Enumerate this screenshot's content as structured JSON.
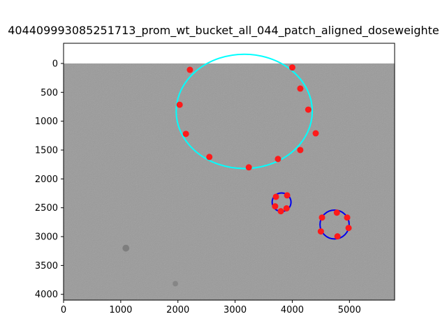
{
  "chart_data": {
    "type": "scatter",
    "title": "404409993085251713_prom_wt_bucket_all_044_patch_aligned_doseweighte",
    "xlabel": "",
    "ylabel": "",
    "xlim": [
      0,
      5790
    ],
    "ylim": [
      -350,
      4100
    ],
    "y_inverted": true,
    "grid": false,
    "legend": "none",
    "x_ticks": [
      0,
      1000,
      2000,
      3000,
      4000,
      5000
    ],
    "y_ticks": [
      0,
      500,
      1000,
      1500,
      2000,
      2500,
      3000,
      3500,
      4000
    ],
    "background_image": {
      "x0": 0,
      "y0": 0,
      "x1": 5790,
      "y1": 4100,
      "color": "#9a9a9a",
      "description": "grayscale micrograph"
    },
    "gray_blobs": [
      {
        "x": 1090,
        "y": 3200,
        "r": 60,
        "color": "#7e7e7e"
      },
      {
        "x": 1955,
        "y": 3815,
        "r": 48,
        "color": "#868686"
      }
    ],
    "fit_ellipses": [
      {
        "cx": 3160,
        "cy": 830,
        "rx": 1190,
        "ry": 990,
        "color": "#00ffff",
        "lw": 2
      },
      {
        "cx": 3813,
        "cy": 2404,
        "rx": 165,
        "ry": 160,
        "color": "#0000ee",
        "lw": 2
      },
      {
        "cx": 4740,
        "cy": 2790,
        "rx": 255,
        "ry": 250,
        "color": "#0000ee",
        "lw": 2
      }
    ],
    "points": {
      "color": "#ff1a1a",
      "radius_px": 4.5,
      "xy": [
        [
          2210,
          110
        ],
        [
          4000,
          70
        ],
        [
          4140,
          435
        ],
        [
          2030,
          715
        ],
        [
          4280,
          800
        ],
        [
          2140,
          1220
        ],
        [
          4410,
          1210
        ],
        [
          2550,
          1620
        ],
        [
          4140,
          1500
        ],
        [
          3750,
          1655
        ],
        [
          3240,
          1800
        ],
        [
          3715,
          2310
        ],
        [
          3910,
          2285
        ],
        [
          3700,
          2475
        ],
        [
          3900,
          2510
        ],
        [
          3800,
          2560
        ],
        [
          4520,
          2670
        ],
        [
          4780,
          2585
        ],
        [
          4960,
          2670
        ],
        [
          4500,
          2910
        ],
        [
          4790,
          2995
        ],
        [
          4985,
          2850
        ]
      ]
    }
  }
}
